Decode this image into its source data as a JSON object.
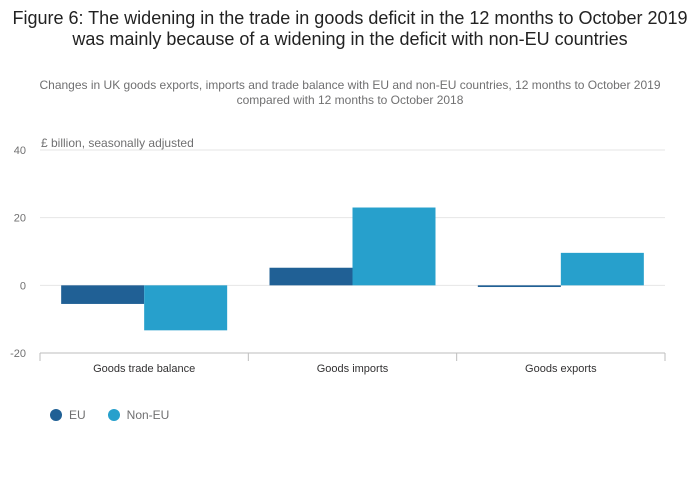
{
  "title": "Figure 6: The widening in the trade in goods deficit in the 12 months to October 2019 was mainly because of a widening in the deficit with non-EU countries",
  "subtitle": "Changes in UK goods exports, imports and trade balance with EU and non-EU countries, 12 months to October 2019 compared with 12 months to October 2018",
  "chart_data": {
    "type": "bar",
    "ylabel": "£ billion, seasonally adjusted",
    "xlabel": "",
    "categories": [
      "Goods trade balance",
      "Goods imports",
      "Goods exports"
    ],
    "series": [
      {
        "name": "EU",
        "color": "#206095",
        "values": [
          -5.5,
          5.2,
          -0.5
        ]
      },
      {
        "name": "Non-EU",
        "color": "#27A0CC",
        "values": [
          -13.3,
          23.0,
          9.6
        ]
      }
    ],
    "ylim": [
      -20,
      40
    ],
    "yticks": [
      40,
      20,
      0,
      -20
    ],
    "grid": true,
    "legend": "bottom-left"
  },
  "colors": {
    "gridline": "#e6e6e6",
    "axis": "#bebebe",
    "tick_text": "#707071"
  }
}
